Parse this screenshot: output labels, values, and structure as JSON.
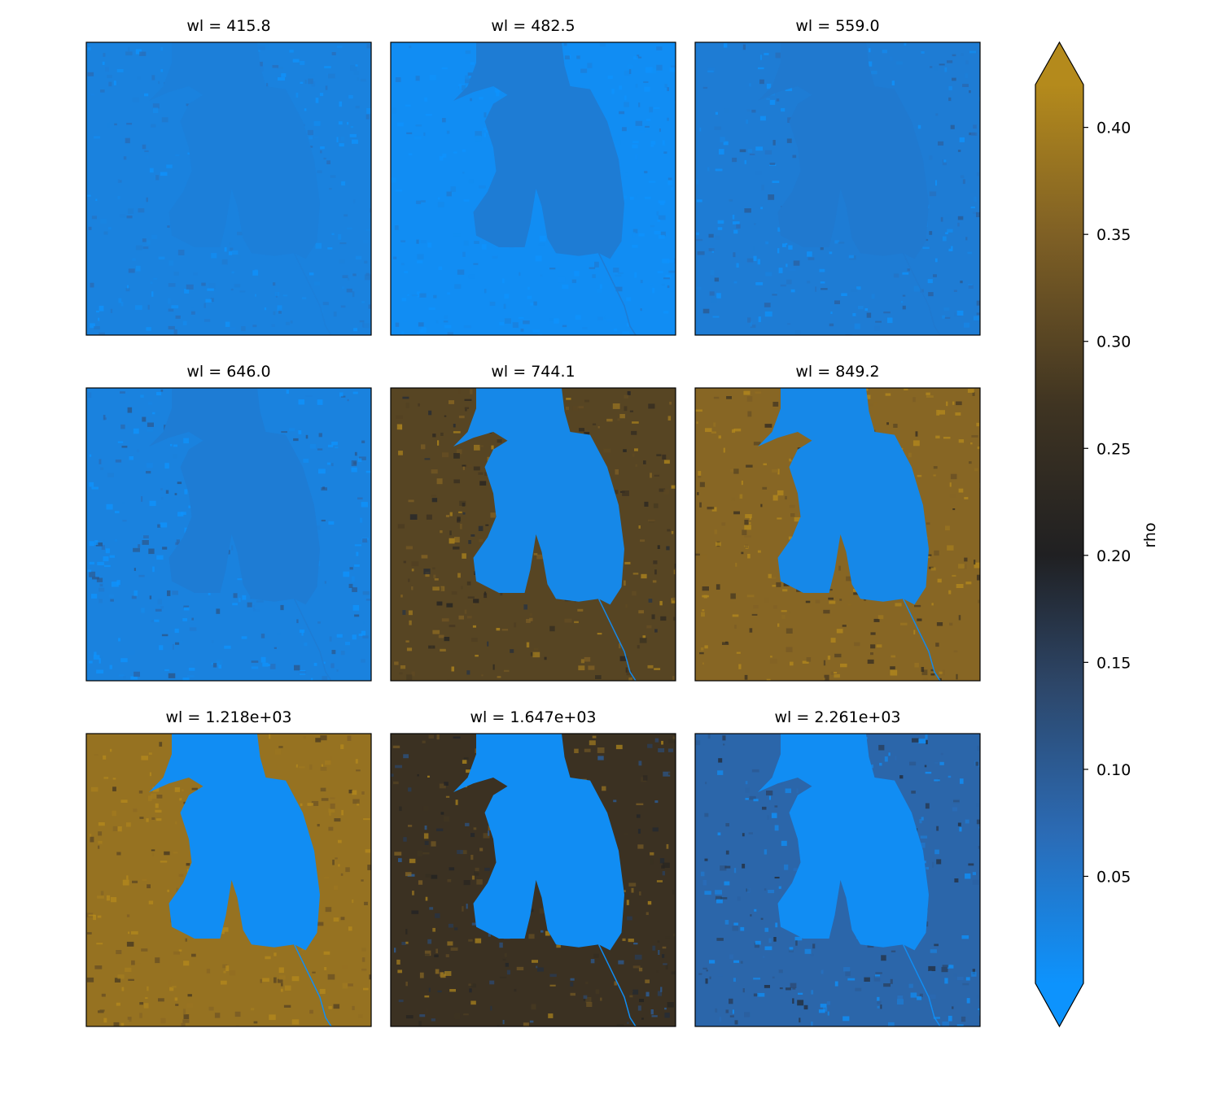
{
  "chart_data": {
    "type": "heatmap",
    "layout": {
      "rows": 3,
      "cols": 3
    },
    "variable": "rho",
    "panels": [
      {
        "title": "wl = 415.8",
        "wl": 415.8,
        "land_level": 0.03,
        "water_level": 0.035,
        "texture": 0.02
      },
      {
        "title": "wl = 482.5",
        "wl": 482.5,
        "land_level": 0.01,
        "water_level": 0.04,
        "texture": 0.02
      },
      {
        "title": "wl = 559.0",
        "wl": 559.0,
        "land_level": 0.04,
        "water_level": 0.045,
        "texture": 0.03
      },
      {
        "title": "wl = 646.0",
        "wl": 646.0,
        "land_level": 0.03,
        "water_level": 0.04,
        "texture": 0.04
      },
      {
        "title": "wl = 744.1",
        "wl": 744.1,
        "land_level": 0.3,
        "water_level": 0.02,
        "texture": 0.06
      },
      {
        "title": "wl = 849.2",
        "wl": 849.2,
        "land_level": 0.36,
        "water_level": 0.02,
        "texture": 0.06
      },
      {
        "title": "wl = 1.218e+03",
        "wl": 1218,
        "land_level": 0.38,
        "water_level": 0.01,
        "texture": 0.05
      },
      {
        "title": "wl = 1.647e+03",
        "wl": 1647,
        "land_level": 0.26,
        "water_level": 0.01,
        "texture": 0.08
      },
      {
        "title": "wl = 2.261e+03",
        "wl": 2261,
        "land_level": 0.08,
        "water_level": 0.01,
        "texture": 0.05
      }
    ],
    "colorbar": {
      "label": "rho",
      "range": [
        0.0,
        0.42
      ],
      "extend": "both",
      "ticks": [
        0.05,
        0.1,
        0.15,
        0.2,
        0.25,
        0.3,
        0.35,
        0.4
      ],
      "tick_labels": [
        "0.05",
        "0.10",
        "0.15",
        "0.20",
        "0.25",
        "0.30",
        "0.35",
        "0.40"
      ],
      "colormap": [
        {
          "value": 0.0,
          "color": "#0d93fd"
        },
        {
          "value": 0.07,
          "color": "#2b6bb5"
        },
        {
          "value": 0.14,
          "color": "#2d4668"
        },
        {
          "value": 0.2,
          "color": "#202022"
        },
        {
          "value": 0.27,
          "color": "#3f3422"
        },
        {
          "value": 0.35,
          "color": "#7f6025"
        },
        {
          "value": 0.42,
          "color": "#b48a1c"
        }
      ]
    }
  }
}
